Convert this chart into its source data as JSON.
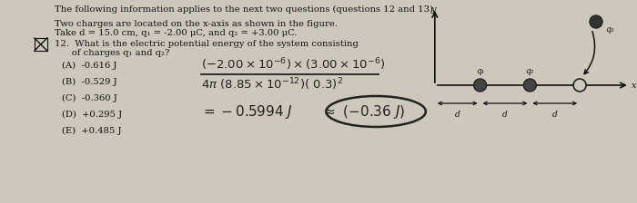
{
  "bg_color": "#cdc8bc",
  "title_text": "The following information applies to the next two questions (questions 12 and 13).",
  "para1_line1": "Two charges are located on the x-axis as shown in the figure.",
  "para1_line2": "Take d = 15.0 cm, q₁ = -2.00 μC, and q₂ = +3.00 μC.",
  "q12_line1": "12.  What is the electric potential energy of the system consisting",
  "q12_line2": "      of charges q₁ and q₂?",
  "choices": [
    "(A)  -0.616 J",
    "(B)  -0.529 J",
    "(C)  -0.360 J",
    "(D)  +0.295 J",
    "(E)  +0.485 J"
  ],
  "text_color": "#111111",
  "handwrite_color": "#222222",
  "diagram_q1_label": "q₁",
  "diagram_q2_label": "q₂",
  "diagram_q3_label": "q₃",
  "diagram_d_labels": [
    "d",
    "d",
    "d"
  ],
  "diagram_x_label": "x",
  "diagram_y_label": "y"
}
